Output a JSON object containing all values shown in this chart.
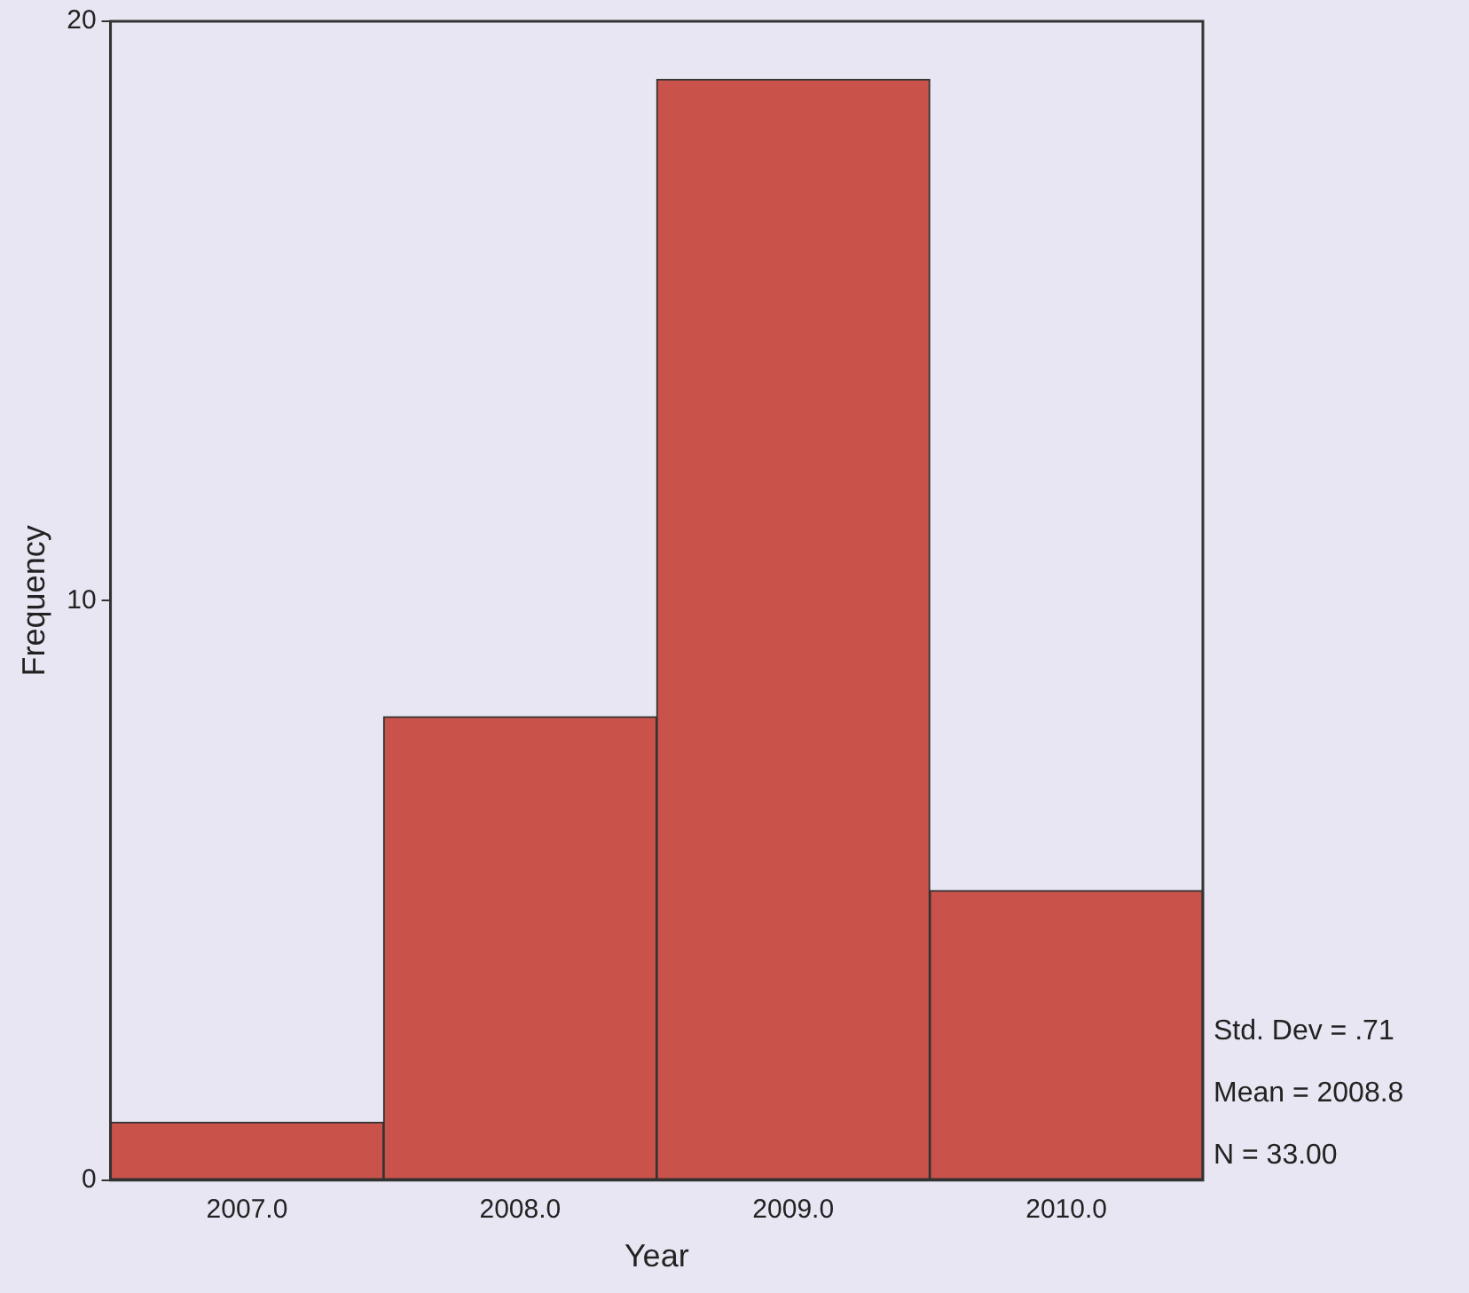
{
  "chart_data": {
    "type": "histogram",
    "xlabel": "Year",
    "ylabel": "Frequency",
    "bins": [
      2006.5,
      2007.5,
      2008.5,
      2009.5,
      2010.5
    ],
    "values": [
      1,
      8,
      19,
      5
    ],
    "color": "#c9534b",
    "xlim": [
      2006.5,
      2010.5
    ],
    "xticks": [
      {
        "value": 2007,
        "label": "2007.0"
      },
      {
        "value": 2008,
        "label": "2008.0"
      },
      {
        "value": 2009,
        "label": "2009.0"
      },
      {
        "value": 2010,
        "label": "2010.0"
      }
    ],
    "ylim": [
      0,
      20
    ],
    "yticks": [
      0,
      10,
      20
    ],
    "grid": false,
    "legend": false,
    "annotations": [
      "Std. Dev = .71",
      "Mean = 2008.8",
      "N = 33.00"
    ]
  }
}
